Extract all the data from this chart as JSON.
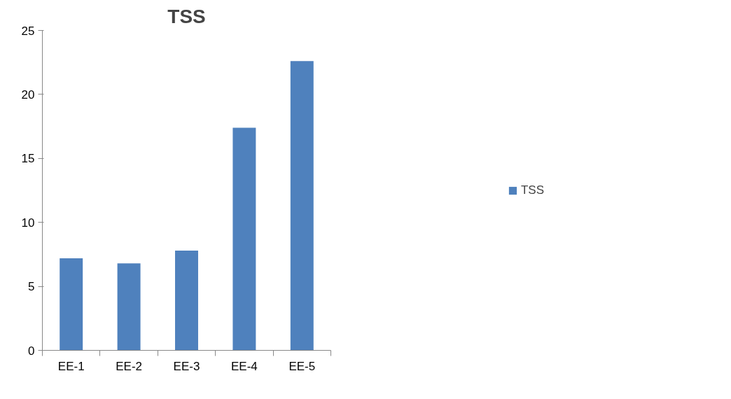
{
  "chart_data": {
    "type": "bar",
    "title": "TSS",
    "categories": [
      "EE-1",
      "EE-2",
      "EE-3",
      "EE-4",
      "EE-5"
    ],
    "series": [
      {
        "name": "TSS",
        "color": "#4f81bd",
        "values": [
          7.2,
          6.8,
          7.8,
          17.4,
          22.6
        ]
      }
    ],
    "ylim": [
      0,
      25
    ],
    "yticks": [
      0,
      5,
      10,
      15,
      20,
      25
    ],
    "grid": false,
    "legend": "right"
  }
}
